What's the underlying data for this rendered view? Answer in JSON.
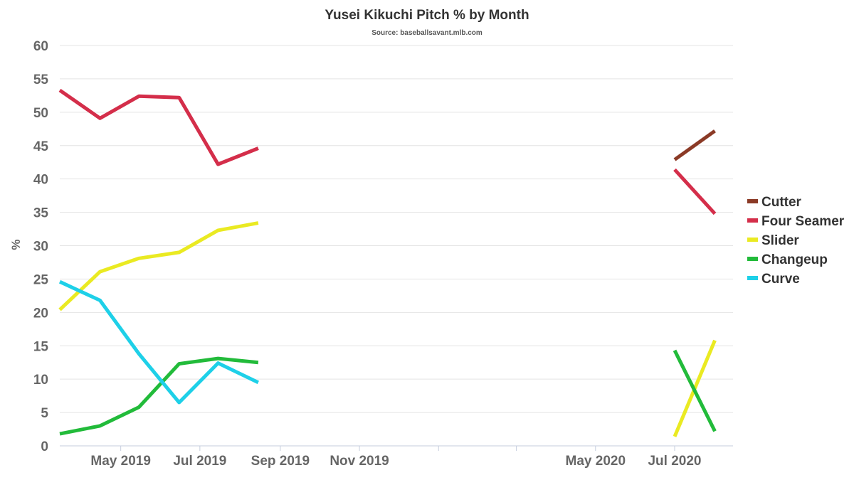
{
  "chart_data": {
    "type": "line",
    "title": "Yusei Kikuchi Pitch % by Month",
    "subtitle": "Source: baseballsavant.mlb.com",
    "ylabel": "%",
    "xlabel": "",
    "ylim": [
      0,
      60
    ],
    "yticks": [
      0,
      5,
      10,
      15,
      20,
      25,
      30,
      35,
      40,
      45,
      50,
      55,
      60
    ],
    "xlim": [
      "2019-03-15",
      "2020-08-15"
    ],
    "xticks": [
      {
        "date": "2019-05-01",
        "label": "May 2019"
      },
      {
        "date": "2019-07-01",
        "label": "Jul 2019"
      },
      {
        "date": "2019-09-01",
        "label": "Sep 2019"
      },
      {
        "date": "2019-11-01",
        "label": "Nov 2019"
      },
      {
        "date": "2020-01-01",
        "label": ""
      },
      {
        "date": "2020-03-01",
        "label": ""
      },
      {
        "date": "2020-05-01",
        "label": "May 2020"
      },
      {
        "date": "2020-07-01",
        "label": "Jul 2020"
      }
    ],
    "grid": "horizontal",
    "legend_position": "right",
    "series": [
      {
        "name": "Cutter",
        "color": "#8b3a26",
        "points": [
          {
            "x": "2020-07-01",
            "y": 42.9
          },
          {
            "x": "2020-08-01",
            "y": 47.2
          }
        ]
      },
      {
        "name": "Four Seamer",
        "color": "#d42e4a",
        "points": [
          {
            "x": "2019-03-15",
            "y": 53.3
          },
          {
            "x": "2019-04-15",
            "y": 49.1
          },
          {
            "x": "2019-05-15",
            "y": 52.4
          },
          {
            "x": "2019-06-15",
            "y": 52.2
          },
          {
            "x": "2019-07-15",
            "y": 42.2
          },
          {
            "x": "2019-08-15",
            "y": 44.6
          },
          {
            "x": "2020-07-01",
            "y": 41.4
          },
          {
            "x": "2020-08-01",
            "y": 34.8
          }
        ]
      },
      {
        "name": "Slider",
        "color": "#eaea22",
        "points": [
          {
            "x": "2019-03-15",
            "y": 20.4
          },
          {
            "x": "2019-04-15",
            "y": 26.1
          },
          {
            "x": "2019-05-15",
            "y": 28.1
          },
          {
            "x": "2019-06-15",
            "y": 29.0
          },
          {
            "x": "2019-07-15",
            "y": 32.3
          },
          {
            "x": "2019-08-15",
            "y": 33.4
          },
          {
            "x": "2020-07-01",
            "y": 1.4
          },
          {
            "x": "2020-08-01",
            "y": 15.8
          }
        ]
      },
      {
        "name": "Changeup",
        "color": "#22bb3a",
        "points": [
          {
            "x": "2019-03-15",
            "y": 1.8
          },
          {
            "x": "2019-04-15",
            "y": 3.0
          },
          {
            "x": "2019-05-15",
            "y": 5.8
          },
          {
            "x": "2019-06-15",
            "y": 12.3
          },
          {
            "x": "2019-07-15",
            "y": 13.1
          },
          {
            "x": "2019-08-15",
            "y": 12.5
          },
          {
            "x": "2020-07-01",
            "y": 14.3
          },
          {
            "x": "2020-08-01",
            "y": 2.2
          }
        ]
      },
      {
        "name": "Curve",
        "color": "#1ed0e8",
        "points": [
          {
            "x": "2019-03-15",
            "y": 24.6
          },
          {
            "x": "2019-04-15",
            "y": 21.8
          },
          {
            "x": "2019-05-15",
            "y": 13.8
          },
          {
            "x": "2019-06-15",
            "y": 6.5
          },
          {
            "x": "2019-07-15",
            "y": 12.4
          },
          {
            "x": "2019-08-15",
            "y": 9.5
          }
        ]
      }
    ],
    "segments": [
      [
        "2019-03-15",
        "2019-08-15"
      ],
      [
        "2020-07-01",
        "2020-08-01"
      ]
    ]
  }
}
